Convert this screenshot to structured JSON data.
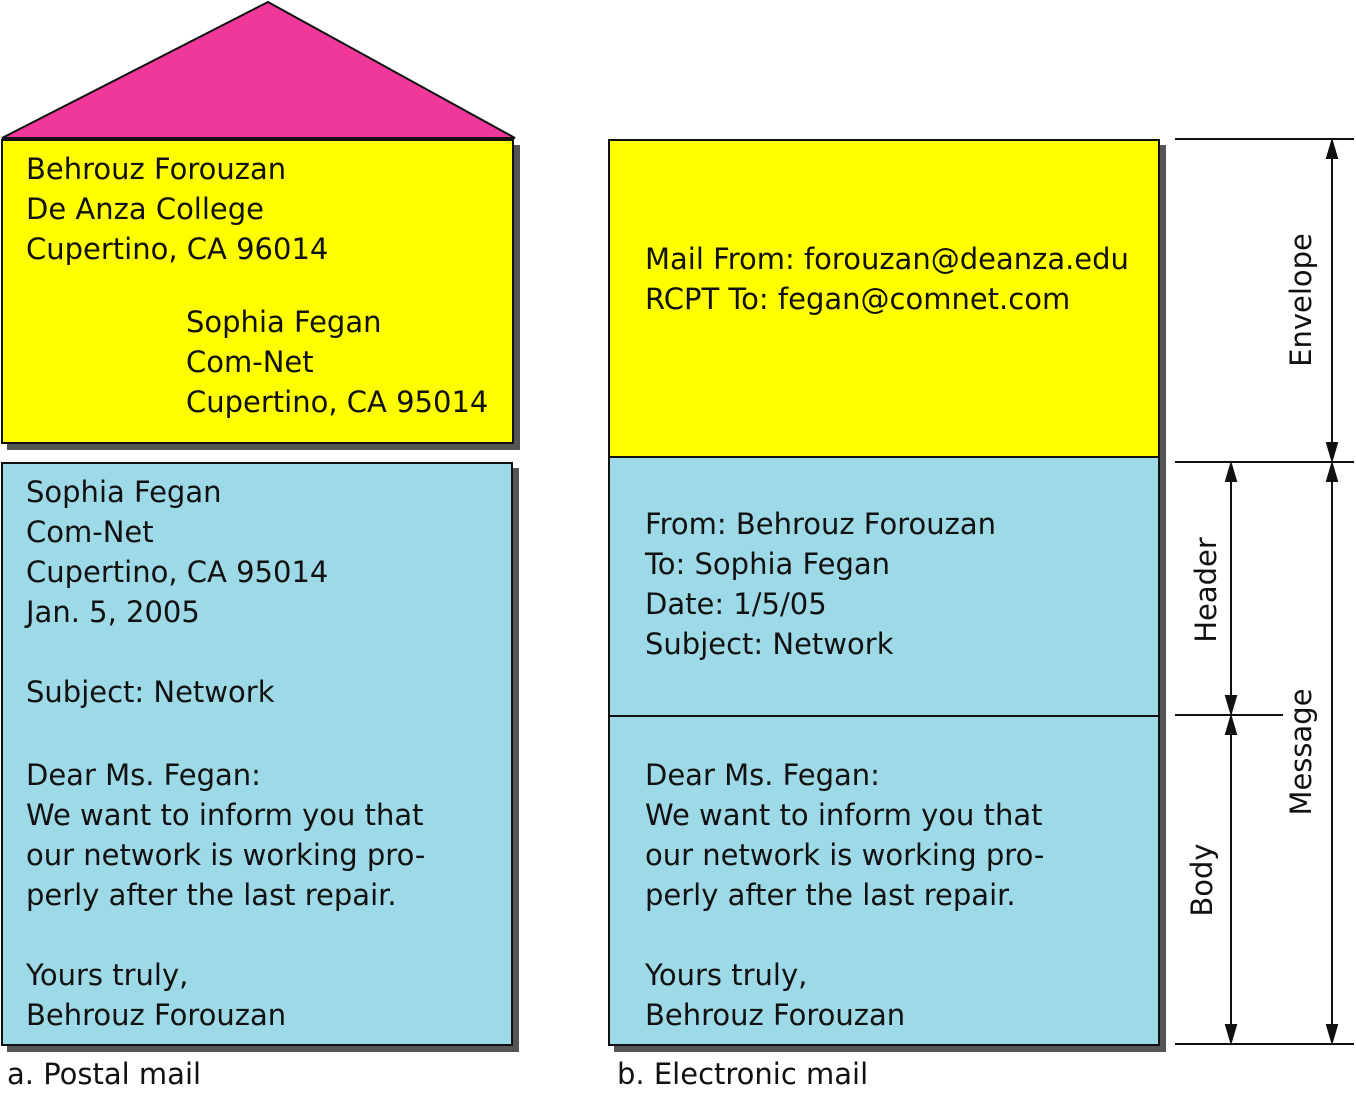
{
  "postal": {
    "envelope_from": [
      "Behrouz Forouzan",
      "De Anza College",
      "Cupertino, CA 96014"
    ],
    "envelope_to": [
      "Sophia Fegan",
      "Com-Net",
      "Cupertino, CA 95014"
    ],
    "letter_address": [
      "Sophia Fegan",
      "Com-Net",
      "Cupertino, CA 95014",
      "Jan. 5, 2005"
    ],
    "letter_subject": "Subject: Network",
    "letter_body": [
      "Dear Ms. Fegan:",
      "We want to inform you that",
      "our network is working pro-",
      "perly after the last repair."
    ],
    "letter_closing": [
      "Yours truly,",
      "Behrouz Forouzan"
    ],
    "caption": "a. Postal mail"
  },
  "electronic": {
    "envelope": [
      "Mail From: forouzan@deanza.edu",
      "RCPT To: fegan@comnet.com"
    ],
    "header": [
      "From: Behrouz Forouzan",
      "To: Sophia Fegan",
      "Date: 1/5/05",
      "Subject: Network"
    ],
    "body": [
      "Dear Ms. Fegan:",
      "We want to inform you that",
      "our network is working pro-",
      "perly after the last repair."
    ],
    "closing": [
      "Yours truly,",
      "Behrouz Forouzan"
    ],
    "caption": "b. Electronic mail"
  },
  "labels": {
    "envelope": "Envelope",
    "header": "Header",
    "body": "Body",
    "message": "Message"
  },
  "colors": {
    "roof": "#f0389a",
    "envelope_fill": "#ffff00",
    "letter_fill": "#9dd9e6"
  }
}
